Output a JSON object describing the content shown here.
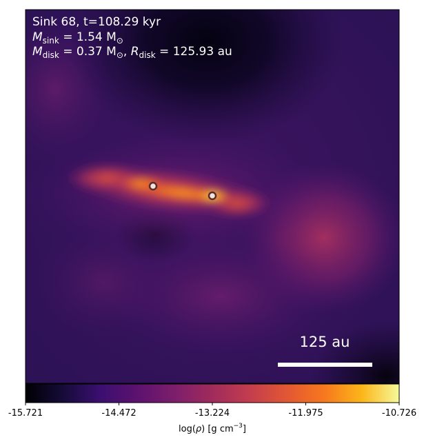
{
  "annotations": {
    "line1": "Sink 68, t=108.29 kyr",
    "line2": {
      "symbol": "M",
      "subscript": "sink",
      "rest": " = 1.54 M",
      "sun_sub": "⊙"
    },
    "line3": {
      "m_symbol": "M",
      "m_subscript": "disk",
      "m_rest": " = 0.37 M",
      "sun_sub": "⊙",
      "sep": ", ",
      "r_symbol": "R",
      "r_subscript": "disk",
      "r_rest": " = 125.93 au"
    }
  },
  "scale_bar": {
    "label": "125 au"
  },
  "sinks": [
    {
      "id": "sink-left"
    },
    {
      "id": "sink-right"
    }
  ],
  "colorbar": {
    "colormap": "inferno",
    "ticks": [
      "-15.721",
      "-14.472",
      "-13.224",
      "-11.975",
      "-10.726"
    ],
    "label_prefix": "log(",
    "label_rho": "ρ",
    "label_unit": ") [g cm",
    "label_exp": "−3",
    "label_close": "]"
  },
  "colors": {
    "text_overlay": "#ffffff",
    "sink_fill": "#f2e4da",
    "sink_edge": "#5a2b28"
  }
}
